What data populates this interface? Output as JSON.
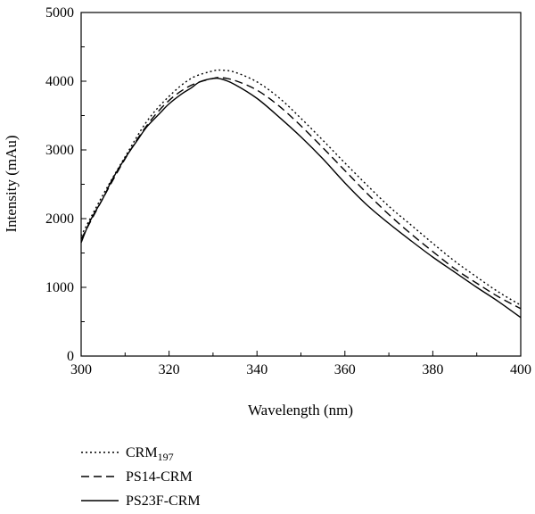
{
  "chart_data": {
    "type": "line",
    "xlabel": "Wavelength (nm)",
    "ylabel": "Intensity (mAu)",
    "xlim": [
      300,
      400
    ],
    "ylim": [
      0,
      5000
    ],
    "xticks": [
      300,
      320,
      340,
      360,
      380,
      400
    ],
    "yticks": [
      0,
      1000,
      2000,
      3000,
      4000,
      5000
    ],
    "grid": false,
    "legend_position": "bottom-left, below plot",
    "series": [
      {
        "name": "CRM",
        "name_subscript": "197",
        "style": "dotted",
        "color": "#000000",
        "x": [
          300,
          305,
          310,
          315,
          320,
          325,
          330,
          332,
          335,
          340,
          345,
          350,
          355,
          360,
          365,
          370,
          375,
          380,
          385,
          390,
          395,
          400
        ],
        "y": [
          1750,
          2350,
          2900,
          3420,
          3780,
          4040,
          4150,
          4160,
          4130,
          3990,
          3760,
          3460,
          3140,
          2810,
          2490,
          2180,
          1910,
          1640,
          1380,
          1150,
          930,
          740
        ]
      },
      {
        "name": "PS14-CRM",
        "style": "dashed",
        "color": "#000000",
        "x": [
          300,
          305,
          310,
          315,
          320,
          325,
          330,
          332,
          335,
          340,
          345,
          350,
          355,
          360,
          365,
          370,
          375,
          380,
          385,
          390,
          395,
          400
        ],
        "y": [
          1700,
          2300,
          2870,
          3360,
          3720,
          3940,
          4040,
          4050,
          4010,
          3870,
          3640,
          3350,
          3030,
          2700,
          2370,
          2060,
          1780,
          1520,
          1270,
          1060,
          860,
          690
        ]
      },
      {
        "name": "PS23F-CRM",
        "style": "solid",
        "color": "#000000",
        "x": [
          300,
          302,
          305,
          307,
          310,
          313,
          315,
          318,
          320,
          323,
          325,
          327,
          330,
          332,
          335,
          340,
          345,
          350,
          355,
          360,
          365,
          370,
          375,
          380,
          385,
          390,
          395,
          400
        ],
        "y": [
          1650,
          1960,
          2300,
          2560,
          2880,
          3160,
          3340,
          3540,
          3670,
          3820,
          3900,
          3990,
          4040,
          4030,
          3950,
          3750,
          3480,
          3190,
          2870,
          2520,
          2200,
          1930,
          1680,
          1440,
          1220,
          1000,
          790,
          560
        ]
      }
    ]
  }
}
